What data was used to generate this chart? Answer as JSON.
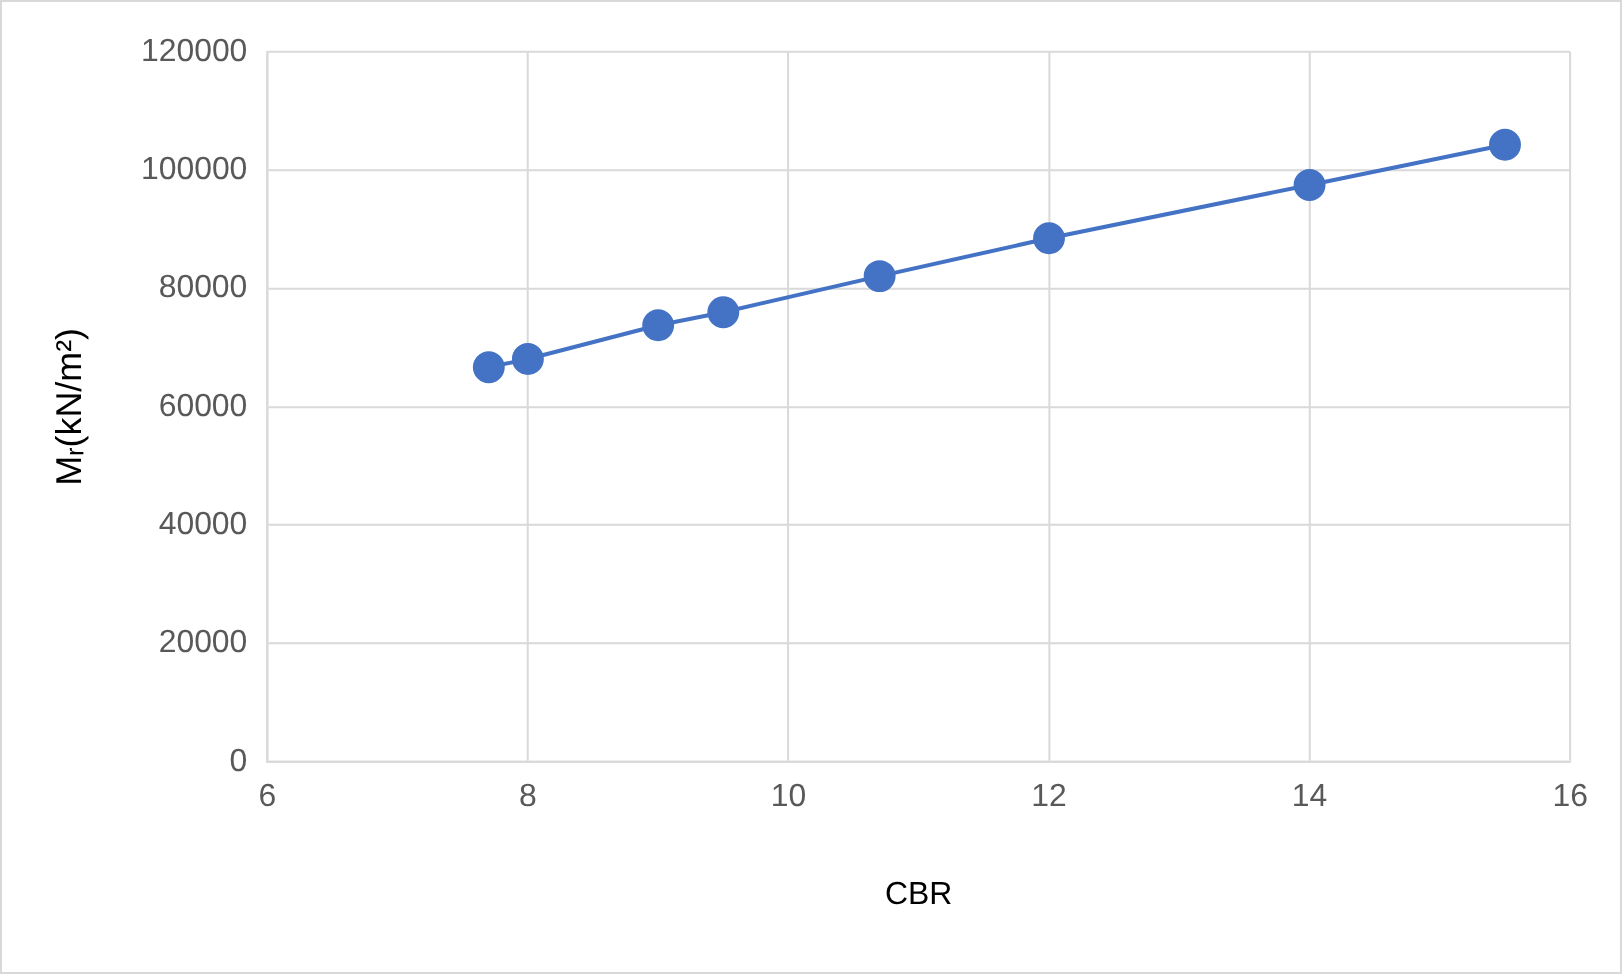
{
  "chart_data": {
    "type": "line",
    "xlabel": "CBR",
    "ylabel": "Mᵣ(kN/m²)",
    "x": [
      7.7,
      8,
      9,
      9.5,
      10.7,
      12,
      14,
      15.5
    ],
    "series": [
      {
        "color": "#4472c4",
        "values": [
          66700,
          68100,
          73800,
          76000,
          82100,
          88500,
          97500,
          104300
        ]
      }
    ],
    "xlim": [
      6,
      16
    ],
    "xticks": [
      6,
      8,
      10,
      12,
      14,
      16
    ],
    "ylim": [
      0,
      120000
    ],
    "yticks": [
      0,
      20000,
      40000,
      60000,
      80000,
      100000,
      120000
    ],
    "grid": true,
    "legend": false,
    "marker": "circle",
    "line_style": "solid"
  }
}
